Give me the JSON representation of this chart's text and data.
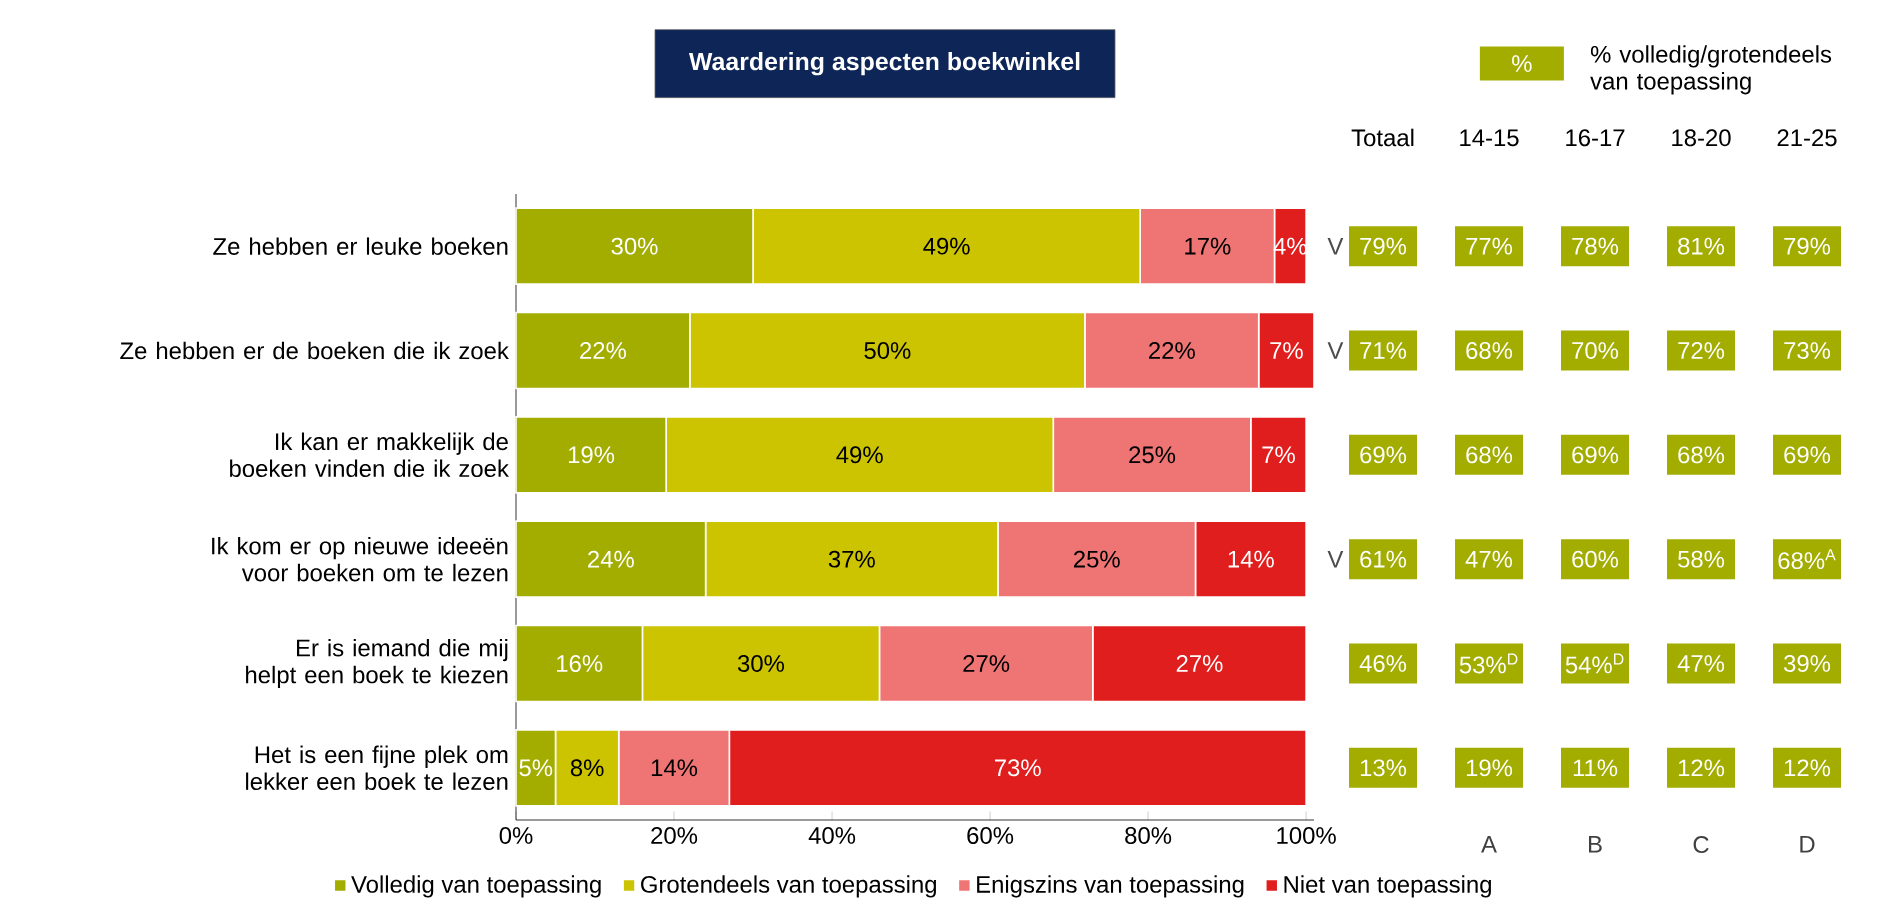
{
  "chart_data": [
    {
      "type": "bar",
      "orientation": "horizontal",
      "stacked": true,
      "title": "Waardering aspecten boekwinkel",
      "categories": [
        "Ze hebben er leuke boeken",
        "Ze hebben er de boeken die ik zoek",
        "Ik kan er makkelijk de boeken vinden die ik zoek",
        "Ik kom er op nieuwe ideeën voor boeken om te lezen",
        "Er is iemand die mij helpt een boek te kiezen",
        "Het is een fijne plek om lekker een boek te lezen"
      ],
      "series": [
        {
          "name": "Volledig van toepassing",
          "color": "#a2ad00",
          "values": [
            30,
            22,
            19,
            24,
            16,
            5
          ],
          "value_labels": [
            "30%",
            "22%",
            "19%",
            "24%",
            "16%",
            "5%"
          ]
        },
        {
          "name": "Grotendeels van toepassing",
          "color": "#ccc400",
          "values": [
            49,
            50,
            49,
            37,
            30,
            8
          ],
          "value_labels": [
            "49%",
            "50%",
            "49%",
            "37%",
            "30%",
            "8%"
          ]
        },
        {
          "name": "Enigszins van toepassing",
          "color": "#ef7575",
          "values": [
            17,
            22,
            25,
            25,
            27,
            14
          ],
          "value_labels": [
            "17%",
            "22%",
            "25%",
            "25%",
            "27%",
            "14%"
          ]
        },
        {
          "name": "Niet van toepassing",
          "color": "#e01e1e",
          "values": [
            4,
            7,
            7,
            14,
            27,
            73
          ],
          "value_labels": [
            "4%",
            "7%",
            "7%",
            "14%",
            "27%",
            "73%"
          ]
        }
      ],
      "xlim": [
        0,
        101
      ],
      "xticks": [
        {
          "value": 0,
          "label": "0%"
        },
        {
          "value": 20,
          "label": "20%"
        },
        {
          "value": 40,
          "label": "40%"
        },
        {
          "value": 60,
          "label": "60%"
        },
        {
          "value": 80,
          "label": "80%"
        },
        {
          "value": 100,
          "label": "100%"
        }
      ],
      "legend": "bottom"
    },
    {
      "type": "other",
      "legend_title": "% volledig/grotendeels van toepassing",
      "color": "#a2ad00",
      "categories": [
        "Totaal",
        "14-15",
        "16-17",
        "18-20",
        "21-25"
      ],
      "y2_categories": [
        "V",
        "V",
        null,
        "V",
        null,
        null
      ],
      "cell_labels": [
        [
          "79%",
          "77%",
          "78%",
          "81%",
          "79%"
        ],
        [
          "71%",
          "68%",
          "70%",
          "72%",
          "73%"
        ],
        [
          "69%",
          "68%",
          "69%",
          "68%",
          "69%"
        ],
        [
          "61%",
          "47%",
          "60%",
          "58%",
          "68%$^{A}$"
        ],
        [
          "46%",
          "53%$^{D}$",
          "54%$^{D}$",
          "47%",
          "39%"
        ],
        [
          "13%",
          "19%",
          "11%",
          "12%",
          "12%"
        ]
      ],
      "annotations": [
        "%",
        "A",
        "B",
        "C",
        "D"
      ]
    }
  ]
}
